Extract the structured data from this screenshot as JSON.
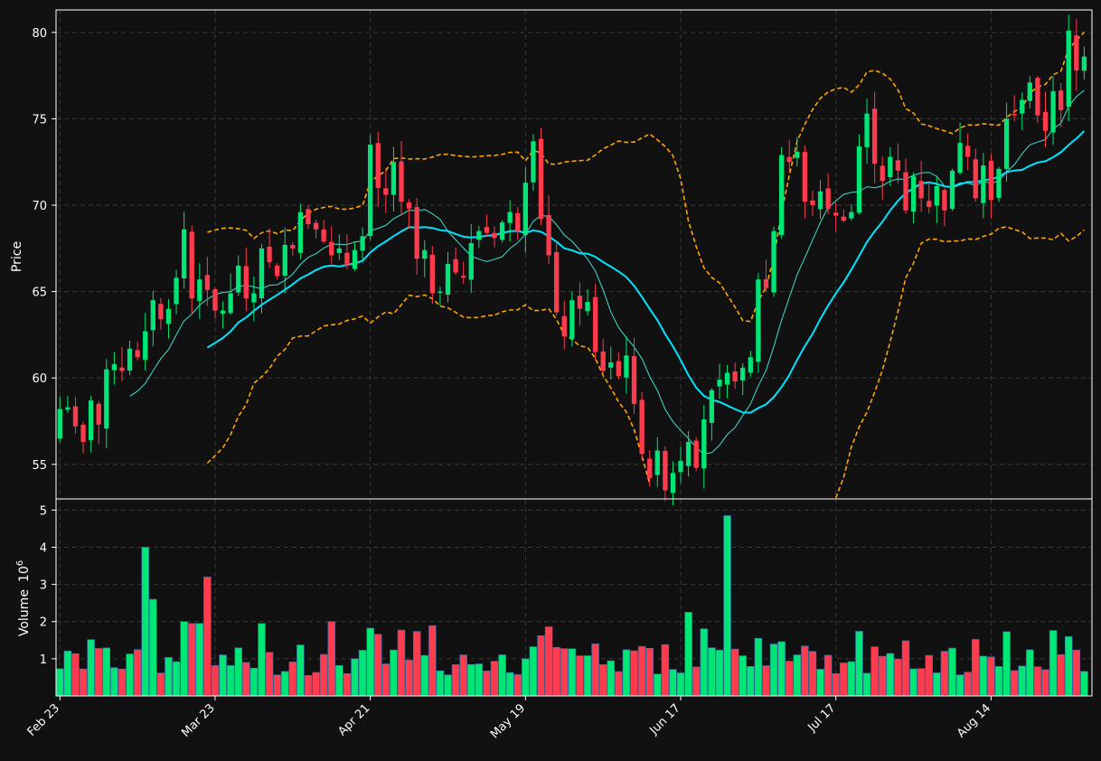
{
  "chart_data": {
    "type": "candlestick",
    "ylabel": "Price",
    "volume_label": "Volume",
    "volume_exponent_base": "10",
    "volume_exponent": "6",
    "x_tick_labels": [
      "Feb 23",
      "Mar 23",
      "Apr 21",
      "May 19",
      "Jun 17",
      "Jul 17",
      "Aug 14"
    ],
    "x_tick_index": [
      0,
      20,
      40,
      60,
      80,
      100,
      120
    ],
    "y_ticks": [
      55,
      60,
      65,
      70,
      75,
      80
    ],
    "ylim": [
      53.0,
      81.3
    ],
    "volume_ticks": [
      1,
      2,
      3,
      4,
      5
    ],
    "volume_ylim": [
      0,
      5.3
    ],
    "colors": {
      "up": "#00e676",
      "down": "#ff3b4e",
      "ma_fast": "#40e0d0",
      "ma_slow": "#00e5ff",
      "bands": "#ffa500",
      "background": "#111111",
      "grid": "#3a3a3a"
    },
    "close": [
      58.2,
      58.3,
      57.2,
      56.3,
      58.7,
      57.3,
      60.5,
      60.8,
      60.4,
      61.7,
      61.2,
      62.7,
      64.5,
      63.4,
      64.0,
      65.8,
      68.6,
      64.6,
      65.7,
      65.1,
      63.9,
      63.9,
      64.9,
      66.5,
      64.6,
      64.9,
      67.5,
      66.7,
      65.9,
      67.7,
      67.5,
      69.6,
      68.9,
      68.6,
      67.9,
      67.1,
      67.5,
      66.5,
      67.4,
      68.2,
      73.5,
      71.0,
      70.6,
      72.5,
      70.2,
      69.8,
      66.9,
      67.4,
      64.9,
      65.0,
      66.6,
      66.1,
      65.8,
      67.8,
      68.5,
      68.4,
      68.1,
      69.0,
      69.6,
      68.5,
      71.3,
      73.7,
      69.2,
      67.1,
      63.8,
      62.4,
      64.5,
      64.0,
      64.4,
      61.5,
      60.4,
      60.9,
      60.1,
      61.3,
      58.5,
      55.6,
      54.2,
      55.8,
      53.5,
      54.5,
      55.2,
      56.3,
      54.8,
      57.6,
      59.3,
      59.9,
      60.3,
      59.8,
      60.6,
      61.2,
      65.7,
      65.2,
      68.5,
      72.9,
      72.5,
      73.1,
      70.2,
      70.0,
      70.8,
      69.8,
      69.4,
      69.1,
      69.6,
      73.4,
      75.3,
      72.4,
      71.4,
      72.8,
      72.0,
      69.7,
      71.7,
      70.4,
      69.9,
      71.1,
      69.7,
      72.0,
      73.6,
      72.8,
      70.4,
      72.3,
      70.3,
      72.1,
      75.0,
      75.2,
      76.1,
      77.1,
      75.2,
      74.3,
      76.6,
      75.5,
      80.1,
      77.8,
      78.6
    ]
  }
}
